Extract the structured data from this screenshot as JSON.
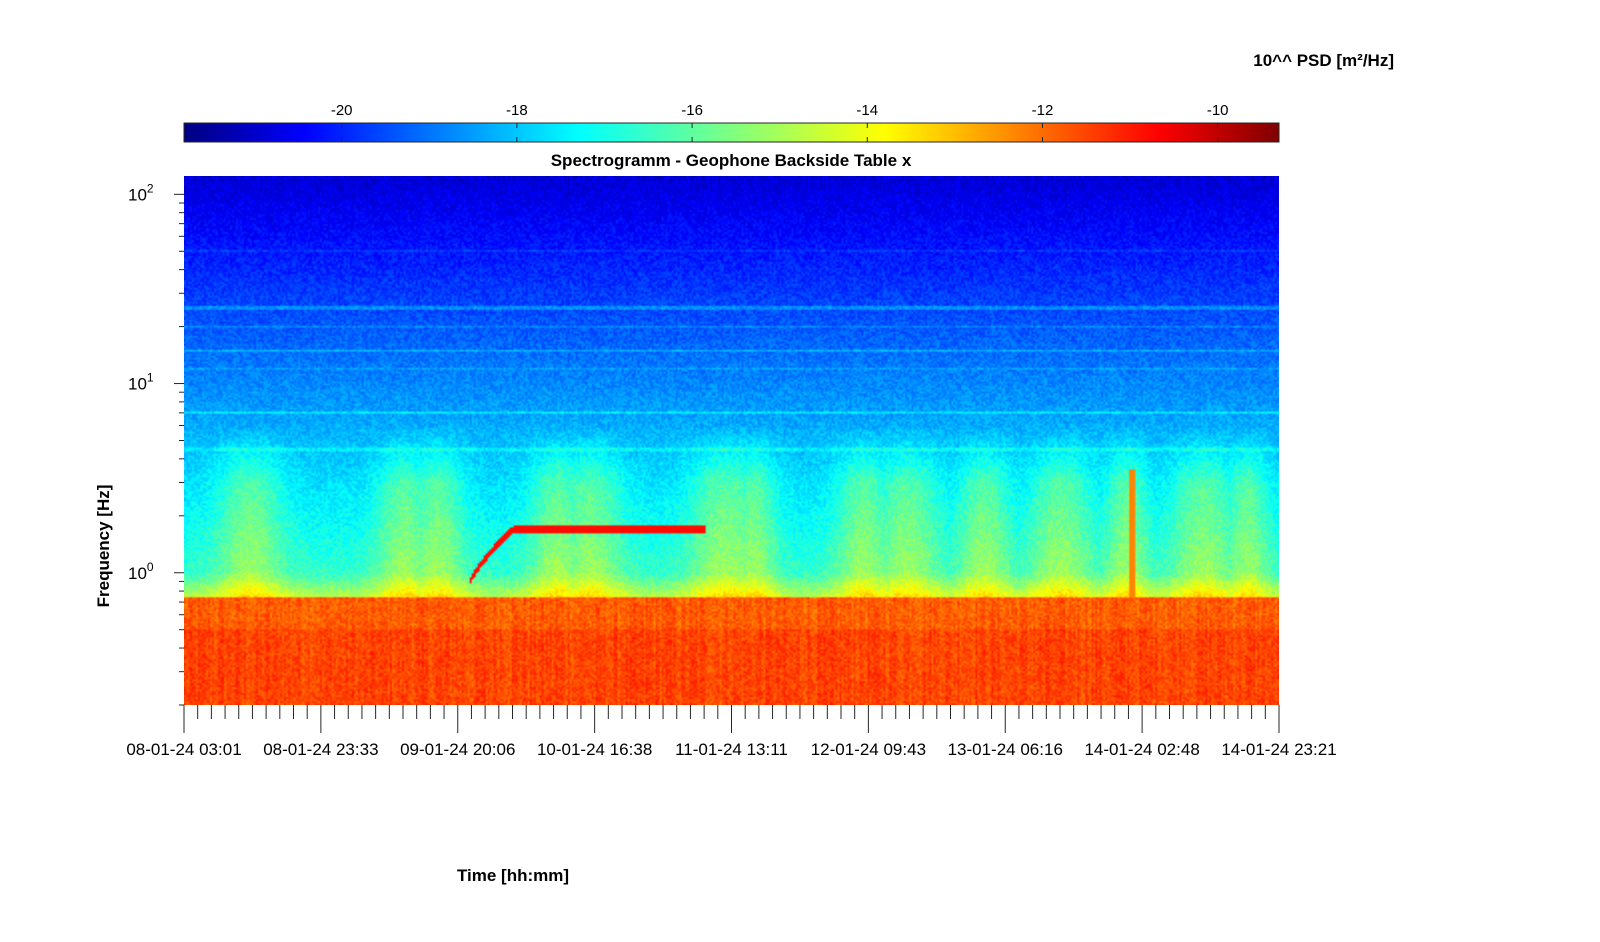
{
  "chart_data": {
    "type": "heatmap",
    "title": "Spectrogramm - Geophone Backside Table x",
    "xlabel": "Time [hh:mm]",
    "ylabel": "Frequency [Hz]",
    "x_ticks": [
      "08-01-24 03:01",
      "08-01-24 23:33",
      "09-01-24 20:06",
      "10-01-24 16:38",
      "11-01-24 13:11",
      "12-01-24 09:43",
      "13-01-24 06:16",
      "14-01-24 02:48",
      "14-01-24 23:21"
    ],
    "xlim": [
      "08-01-24 03:01",
      "14-01-24 23:21"
    ],
    "y_scale": "log",
    "y_ticks": [
      {
        "base": "10",
        "exp": "0",
        "value": 1
      },
      {
        "base": "10",
        "exp": "1",
        "value": 10
      },
      {
        "base": "10",
        "exp": "2",
        "value": 100
      }
    ],
    "ylim": [
      0.2,
      125
    ],
    "colorbar": {
      "label": "10^^ PSD [m²/Hz]",
      "ticks": [
        "-20",
        "-18",
        "-16",
        "-14",
        "-12",
        "-10"
      ],
      "tick_values": [
        -20,
        -18,
        -16,
        -14,
        -12,
        -10
      ],
      "range": [
        -21.8,
        -9.3
      ],
      "colormap": "jet",
      "location": "top"
    },
    "features": [
      {
        "kind": "broadband_low_freq",
        "freq_range": [
          0.2,
          0.75
        ],
        "level": -11.8
      },
      {
        "kind": "tonal_sweep",
        "time_range": [
          "09-01-24 20:06",
          "11-01-24 13:11"
        ],
        "freq_range": [
          0.9,
          1.7
        ],
        "level": -11.2
      }
    ]
  }
}
